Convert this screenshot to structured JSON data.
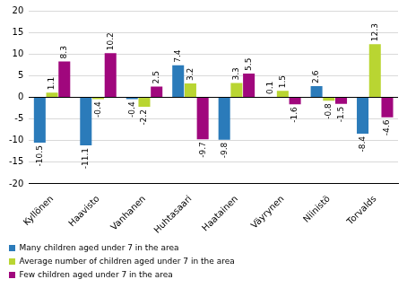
{
  "chart_data": {
    "type": "bar",
    "categories": [
      "Kyllönen",
      "Haavisto",
      "Vanhanen",
      "Huhtasaari",
      "Haatainen",
      "Väyrynen",
      "Niinistö",
      "Torvalds"
    ],
    "series": [
      {
        "name": "Many children aged under 7 in the area",
        "color": "#2b7bba",
        "values": [
          -10.5,
          -11.1,
          -0.4,
          7.4,
          -9.8,
          0.1,
          2.6,
          -8.4
        ]
      },
      {
        "name": "Average number of children aged under 7 in the area",
        "color": "#b9d532",
        "values": [
          1.1,
          -0.4,
          -2.2,
          3.2,
          3.3,
          1.5,
          -0.8,
          12.3
        ]
      },
      {
        "name": "Few children aged under 7 in the area",
        "color": "#a0077d",
        "values": [
          8.3,
          10.2,
          2.5,
          -9.7,
          5.5,
          -1.6,
          -1.5,
          -4.6
        ]
      }
    ],
    "ylim": [
      -20,
      20
    ],
    "yticks": [
      -20,
      -15,
      -10,
      -5,
      0,
      5,
      10,
      15,
      20
    ],
    "grid": true,
    "legend": "bottom",
    "data_labels": true
  }
}
